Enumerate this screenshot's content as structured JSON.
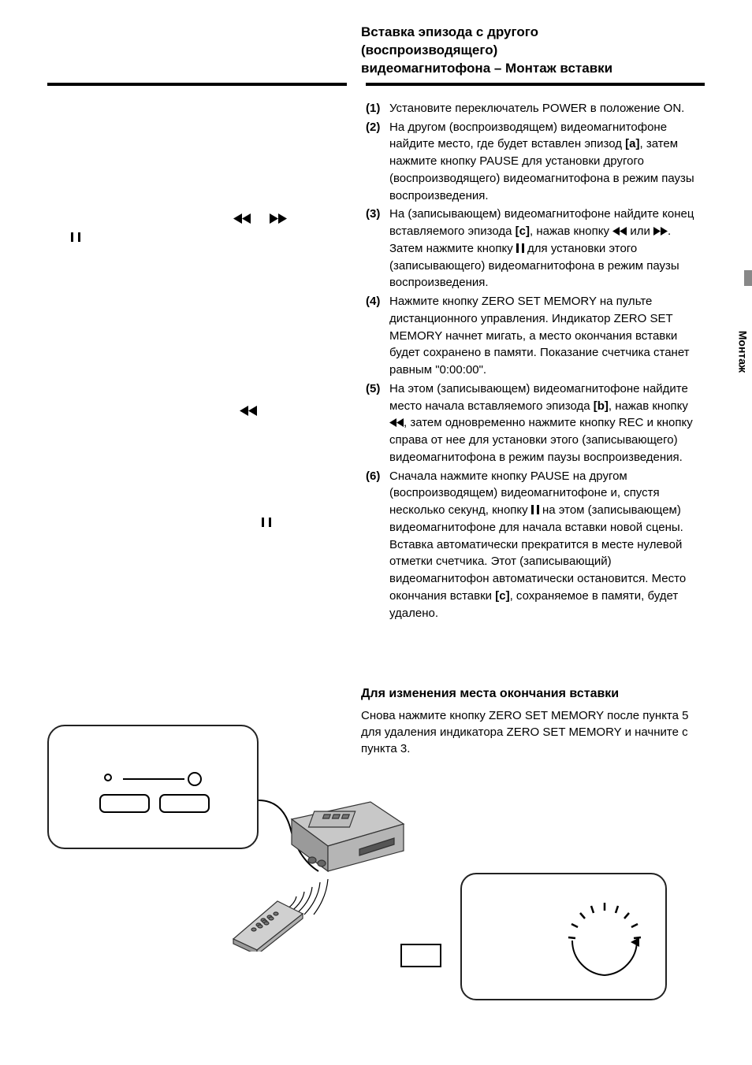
{
  "title_lines": [
    "Вставка эпизода с другого",
    "(воспроизводящего)",
    "видеомагнитофона – Монтаж вставки"
  ],
  "side_tab": "Монтаж",
  "steps": [
    {
      "num": "(1)",
      "html": "Установите переключатель POWER в положение ON."
    },
    {
      "num": "(2)",
      "html": "На другом (воспроизводящем) видеомагнитофоне найдите место, где будет вставлен эпизод <span class=\"b\">[a]</span>, затем нажмите кнопку PAUSE для установки другого (воспроизводящего) видеомагнитофона в режим паузы воспроизведения."
    },
    {
      "num": "(3)",
      "html": "На (записывающем) видеомагнитофоне найдите конец вставляемого эпизода <span class=\"b\">[c]</span>, нажав кнопку <svg class=\"icon\" width=\"18\" height=\"11\" viewBox=\"0 0 18 11\"><path d=\"M9 0 L0 5.5 L9 11 Z M18 0 L9 5.5 L18 11 Z\" fill=\"#000\"/></svg> или <svg class=\"icon\" width=\"18\" height=\"11\" viewBox=\"0 0 18 11\"><path d=\"M0 0 L9 5.5 L0 11 Z M9 0 L18 5.5 L9 11 Z\" fill=\"#000\"/></svg>. Затем нажмите кнопку <span class=\"pause-icon\"></span> для установки этого (записывающего) видеомагнитофона в режим паузы воспроизведения."
    },
    {
      "num": "(4)",
      "html": "Нажмите кнопку ZERO SET MEMORY на пульте дистанционного управления. Индикатор ZERO SET MEMORY начнет мигать, а место окончания вставки будет сохранено в памяти. Показание счетчика станет равным \"0:00:00\"."
    },
    {
      "num": "(5)",
      "html": "На этом (записывающем) видеомагнитофоне найдите место начала вставляемого эпизода <span class=\"b\">[b]</span>, нажав кнопку <svg class=\"icon\" width=\"18\" height=\"11\" viewBox=\"0 0 18 11\"><path d=\"M9 0 L0 5.5 L9 11 Z M18 0 L9 5.5 L18 11 Z\" fill=\"#000\"/></svg>, затем одновременно нажмите кнопку REC и кнопку справа от нее для установки этого (записывающего) видеомагнитофона в режим паузы воспроизведения."
    },
    {
      "num": "(6)",
      "html": "Сначала нажмите кнопку PAUSE на другом (воспроизводящем) видеомагнитофоне и, спустя несколько секунд, кнопку <span class=\"pause-icon\"></span> на этом (записывающем) видеомагнитофоне для начала вставки новой сцены.<br>Вставка автоматически прекратится в месте нулевой отметки счетчика. Этот (записывающий) видеомагнитофон автоматически остановится. Место окончания вставки <span class=\"b\">[c]</span>, сохраняемое в памяти, будет удалено."
    }
  ],
  "sub_heading": "Для изменения места окончания вставки",
  "sub_text": "Снова нажмите кнопку ZERO SET MEMORY после пункта 5 для удаления индикатора ZERO SET MEMORY и начните с пункта 3.",
  "colors": {
    "text": "#000000",
    "background": "#ffffff",
    "tab_bar": "#888888",
    "border": "#222222"
  }
}
